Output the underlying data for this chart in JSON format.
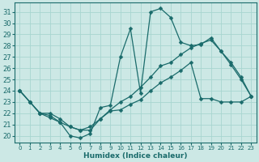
{
  "xlabel": "Humidex (Indice chaleur)",
  "bg_color": "#cce8e5",
  "grid_color": "#a8d5d0",
  "line_color": "#1a6b6b",
  "xlim": [
    -0.5,
    23.5
  ],
  "ylim": [
    19.4,
    31.8
  ],
  "xticks": [
    0,
    1,
    2,
    3,
    4,
    5,
    6,
    7,
    8,
    9,
    10,
    11,
    12,
    13,
    14,
    15,
    16,
    17,
    18,
    19,
    20,
    21,
    22,
    23
  ],
  "yticks": [
    20,
    21,
    22,
    23,
    24,
    25,
    26,
    27,
    28,
    29,
    30,
    31
  ],
  "line1_x": [
    0,
    1,
    2,
    3,
    4,
    5,
    6,
    7,
    8,
    9,
    10,
    11,
    12,
    13,
    14,
    15,
    16,
    17,
    18,
    19,
    20,
    21,
    22,
    23
  ],
  "line1_y": [
    24.0,
    23.0,
    22.0,
    21.8,
    21.2,
    20.0,
    19.8,
    20.2,
    22.5,
    22.7,
    27.0,
    29.5,
    23.8,
    31.0,
    31.3,
    30.5,
    28.3,
    28.0,
    28.1,
    28.7,
    27.5,
    26.5,
    25.2,
    23.5
  ],
  "line2_x": [
    0,
    1,
    2,
    3,
    4,
    5,
    6,
    7,
    8,
    9,
    10,
    11,
    12,
    13,
    14,
    15,
    16,
    17,
    18,
    19,
    20,
    21,
    22,
    23
  ],
  "line2_y": [
    24.0,
    23.0,
    22.0,
    21.6,
    21.2,
    20.8,
    20.5,
    20.5,
    21.5,
    22.3,
    23.0,
    23.5,
    24.3,
    25.2,
    26.2,
    26.5,
    27.2,
    27.8,
    28.2,
    28.5,
    27.5,
    26.3,
    25.0,
    23.5
  ],
  "line3_x": [
    0,
    1,
    2,
    3,
    4,
    5,
    6,
    7,
    8,
    9,
    10,
    11,
    12,
    13,
    14,
    15,
    16,
    17,
    18,
    19,
    20,
    21,
    22,
    23
  ],
  "line3_y": [
    24.0,
    23.0,
    22.0,
    22.0,
    21.5,
    20.8,
    20.5,
    20.8,
    21.5,
    22.2,
    22.3,
    22.8,
    23.2,
    24.0,
    24.7,
    25.2,
    25.8,
    26.5,
    23.3,
    23.3,
    23.0,
    23.0,
    23.0,
    23.5
  ]
}
